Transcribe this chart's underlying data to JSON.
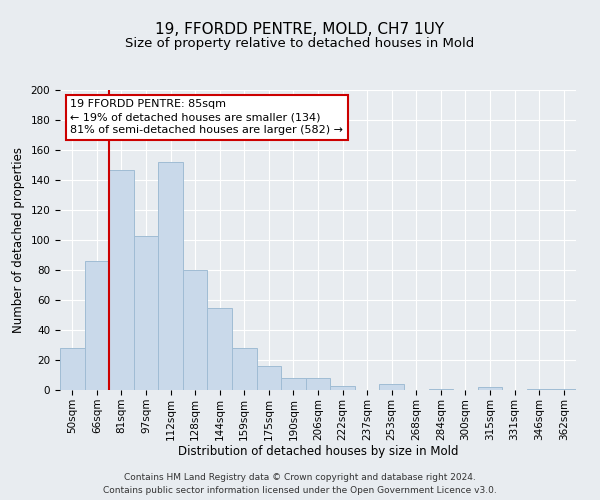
{
  "title": "19, FFORDD PENTRE, MOLD, CH7 1UY",
  "subtitle": "Size of property relative to detached houses in Mold",
  "xlabel": "Distribution of detached houses by size in Mold",
  "ylabel": "Number of detached properties",
  "bin_labels": [
    "50sqm",
    "66sqm",
    "81sqm",
    "97sqm",
    "112sqm",
    "128sqm",
    "144sqm",
    "159sqm",
    "175sqm",
    "190sqm",
    "206sqm",
    "222sqm",
    "237sqm",
    "253sqm",
    "268sqm",
    "284sqm",
    "300sqm",
    "315sqm",
    "331sqm",
    "346sqm",
    "362sqm"
  ],
  "bar_heights": [
    28,
    86,
    147,
    103,
    152,
    80,
    55,
    28,
    16,
    8,
    8,
    3,
    0,
    4,
    0,
    1,
    0,
    2,
    0,
    1,
    1
  ],
  "bar_color": "#c9d9ea",
  "bar_edge_color": "#a0bcd4",
  "vline_color": "#cc0000",
  "vline_x": 1.5,
  "ylim": [
    0,
    200
  ],
  "yticks": [
    0,
    20,
    40,
    60,
    80,
    100,
    120,
    140,
    160,
    180,
    200
  ],
  "annotation_box_text": "19 FFORDD PENTRE: 85sqm\n← 19% of detached houses are smaller (134)\n81% of semi-detached houses are larger (582) →",
  "annotation_box_color": "#cc0000",
  "footer_line1": "Contains HM Land Registry data © Crown copyright and database right 2024.",
  "footer_line2": "Contains public sector information licensed under the Open Government Licence v3.0.",
  "bg_color": "#e8ecf0",
  "plot_bg_color": "#e8ecf0",
  "title_fontsize": 11,
  "subtitle_fontsize": 9.5,
  "axis_label_fontsize": 8.5,
  "tick_fontsize": 7.5,
  "footer_fontsize": 6.5,
  "ann_fontsize": 8
}
